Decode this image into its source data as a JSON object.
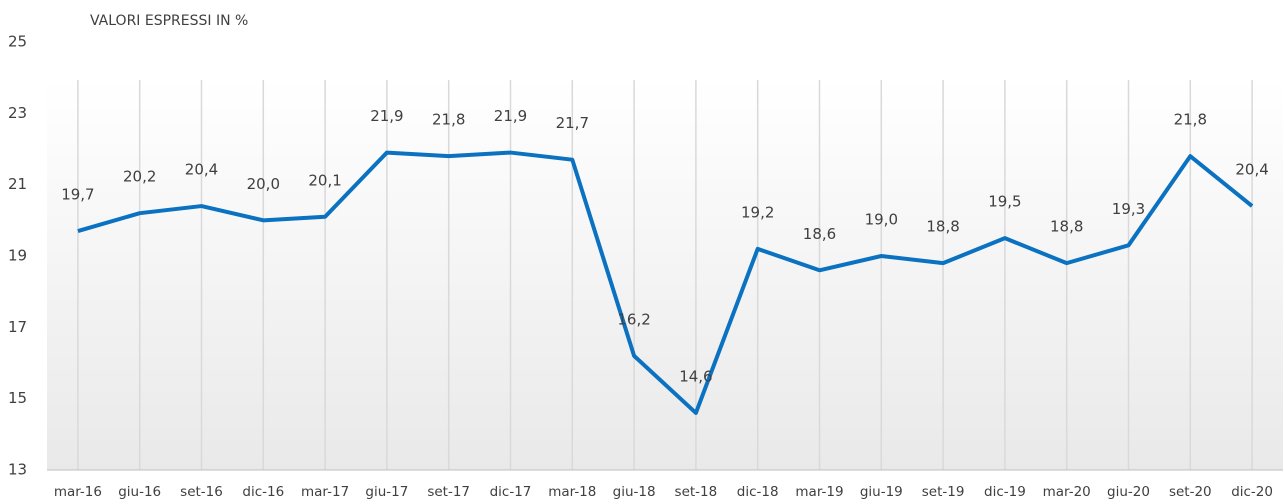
{
  "chart_data": {
    "type": "line",
    "title": "VALORI ESPRESSI IN %",
    "categories": [
      "mar-16",
      "giu-16",
      "set-16",
      "dic-16",
      "mar-17",
      "giu-17",
      "set-17",
      "dic-17",
      "mar-18",
      "giu-18",
      "set-18",
      "dic-18",
      "mar-19",
      "giu-19",
      "set-19",
      "dic-19",
      "mar-20",
      "giu-20",
      "set-20",
      "dic-20"
    ],
    "series": [
      {
        "name": "VALORI ESPRESSI IN %",
        "color": "#0a72c0",
        "values": [
          19.7,
          20.2,
          20.4,
          20.0,
          20.1,
          21.9,
          21.8,
          21.9,
          21.7,
          16.2,
          14.6,
          19.2,
          18.6,
          19.0,
          18.8,
          19.5,
          18.8,
          19.3,
          21.8,
          20.4
        ],
        "value_labels": [
          "19,7",
          "20,2",
          "20,4",
          "20,0",
          "20,1",
          "21,9",
          "21,8",
          "21,9",
          "21,7",
          "16,2",
          "14,6",
          "19,2",
          "18,6",
          "19,0",
          "18,8",
          "19,5",
          "18,8",
          "19,3",
          "21,8",
          "20,4"
        ]
      }
    ],
    "ylim": [
      13,
      25
    ],
    "yticks": [
      13,
      15,
      17,
      19,
      21,
      23,
      25
    ],
    "grid": true
  }
}
